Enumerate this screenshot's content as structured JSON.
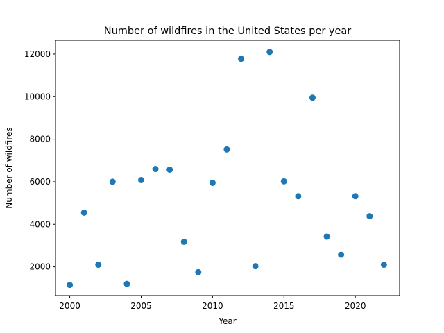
{
  "chart_data": {
    "type": "scatter",
    "title": "Number of wildfires in the United States per year",
    "xlabel": "Year",
    "ylabel": "Number of wildfires",
    "xlim": [
      1999,
      2023.1
    ],
    "ylim": [
      650,
      12650
    ],
    "xticks": [
      2000,
      2005,
      2010,
      2015,
      2020
    ],
    "yticks": [
      2000,
      4000,
      6000,
      8000,
      10000,
      12000
    ],
    "grid": false,
    "color": "#1f77b4",
    "series": [
      {
        "x": [
          2000,
          2001,
          2002,
          2003,
          2004,
          2005,
          2006,
          2007,
          2008,
          2009,
          2010,
          2011,
          2012,
          2013,
          2014,
          2015,
          2016,
          2017,
          2018,
          2019,
          2020,
          2021,
          2022
        ],
        "values": [
          1150,
          4550,
          2100,
          6000,
          1200,
          6080,
          6600,
          6570,
          3180,
          1750,
          5950,
          7520,
          11780,
          2030,
          12100,
          6020,
          5320,
          9950,
          3420,
          2570,
          5320,
          4380,
          2100
        ]
      }
    ]
  }
}
